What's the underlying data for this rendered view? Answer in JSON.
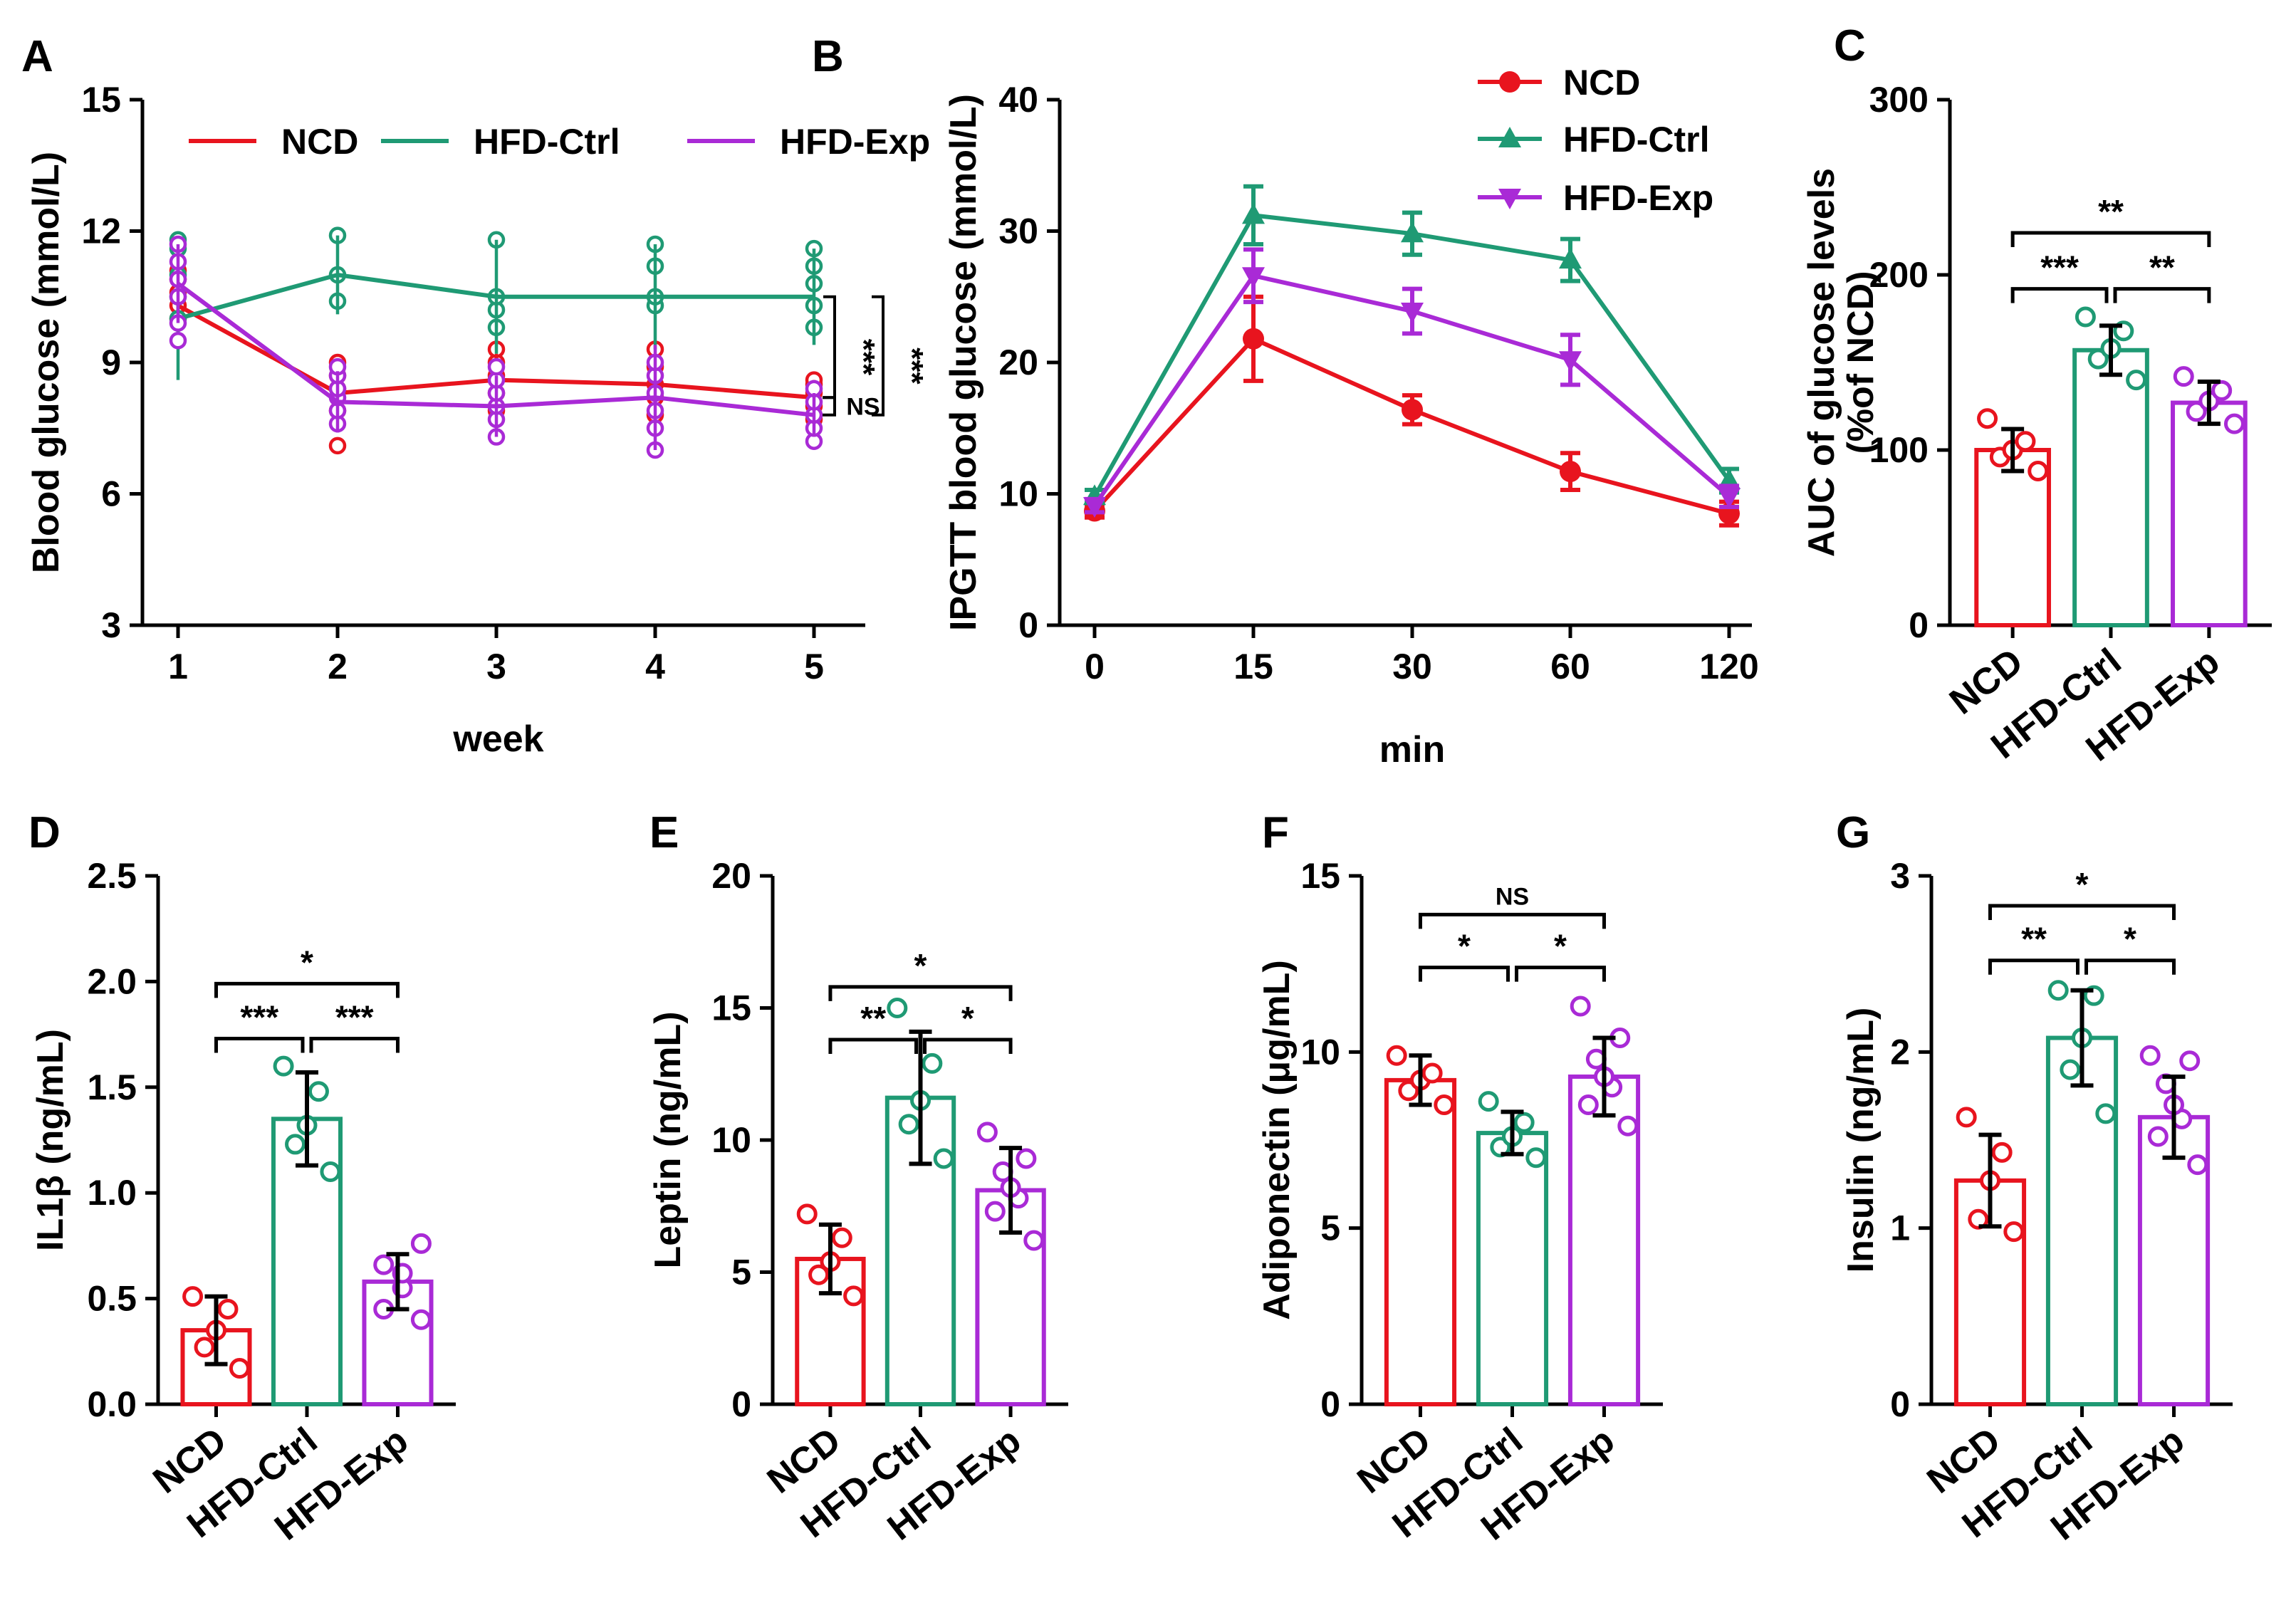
{
  "colors": {
    "NCD": "#e8141e",
    "HFD-Ctrl": "#1f9a74",
    "HFD-Exp": "#a92ad6",
    "axis": "#000000"
  },
  "chart_data": [
    {
      "id": "A",
      "panel_label": "A",
      "type": "line",
      "title": "",
      "xlabel": "week",
      "ylabel": "Blood glucose (mmol/L)",
      "x": [
        1,
        2,
        3,
        4,
        5
      ],
      "xtick_labels": [
        "1",
        "2",
        "3",
        "4",
        "5"
      ],
      "ylim": [
        3,
        15
      ],
      "yticks": [
        3,
        6,
        9,
        12,
        15
      ],
      "ytick_labels": [
        "3",
        "6",
        "9",
        "12",
        "15"
      ],
      "legend": {
        "placement": "top",
        "entries": [
          "NCD",
          "HFD-Ctrl",
          "HFD-Exp"
        ]
      },
      "series": [
        {
          "name": "NCD",
          "values": [
            10.3,
            8.3,
            8.6,
            8.5,
            8.2
          ],
          "err": [
            0.6,
            0.7,
            0.6,
            0.6,
            0.4
          ],
          "points": [
            [
              10.0,
              10.3,
              10.6,
              10.9,
              11.1
            ],
            [
              7.1,
              7.9,
              8.4,
              8.7,
              9.0
            ],
            [
              7.9,
              8.3,
              8.7,
              9.0,
              9.3
            ],
            [
              7.8,
              8.2,
              8.5,
              8.9,
              9.3
            ],
            [
              7.7,
              8.0,
              8.3,
              8.5,
              8.6
            ]
          ]
        },
        {
          "name": "HFD-Ctrl",
          "values": [
            10.0,
            11.0,
            10.5,
            10.5,
            10.5
          ],
          "err": [
            1.4,
            0.9,
            1.3,
            1.2,
            1.1
          ],
          "points": [
            [
              10.0,
              10.5,
              11.0,
              11.6,
              11.8
            ],
            [
              10.4,
              11.0,
              11.9
            ],
            [
              9.8,
              10.2,
              10.5,
              11.8
            ],
            [
              10.3,
              10.5,
              11.2,
              11.7
            ],
            [
              9.8,
              10.3,
              10.8,
              11.2,
              11.6
            ]
          ]
        },
        {
          "name": "HFD-Exp",
          "values": [
            10.8,
            8.1,
            8.0,
            8.2,
            7.8
          ],
          "err": [
            0.9,
            0.7,
            0.7,
            1.2,
            0.5
          ],
          "points": [
            [
              9.5,
              9.9,
              10.5,
              10.9,
              11.3,
              11.7
            ],
            [
              7.6,
              7.9,
              8.2,
              8.4,
              8.7,
              8.9
            ],
            [
              7.3,
              7.7,
              8.0,
              8.3,
              8.6,
              8.9
            ],
            [
              7.0,
              7.5,
              7.9,
              8.3,
              8.7,
              9.0
            ],
            [
              7.2,
              7.5,
              7.8,
              8.1,
              8.4
            ]
          ]
        }
      ],
      "brackets": [
        {
          "label": "***",
          "from": 10.5,
          "to": 8.2
        },
        {
          "label": "NS",
          "from": 8.2,
          "to": 7.8
        },
        {
          "label": "***",
          "from": 10.5,
          "to": 7.8
        }
      ]
    },
    {
      "id": "B",
      "panel_label": "B",
      "type": "line",
      "title": "",
      "xlabel": "min",
      "ylabel": "IPGTT blood glucose (mmol/L)",
      "x": [
        0,
        15,
        30,
        60,
        120
      ],
      "xtick_labels": [
        "0",
        "15",
        "30",
        "60",
        "120"
      ],
      "ylim": [
        0,
        40
      ],
      "yticks": [
        0,
        10,
        20,
        30,
        40
      ],
      "ytick_labels": [
        "0",
        "10",
        "20",
        "30",
        "40"
      ],
      "legend": {
        "placement": "top-right",
        "entries": [
          "NCD",
          "HFD-Ctrl",
          "HFD-Exp"
        ]
      },
      "series": [
        {
          "name": "NCD",
          "marker": "circle",
          "values": [
            8.7,
            21.8,
            16.4,
            11.7,
            8.5
          ],
          "err": [
            0.5,
            3.2,
            1.1,
            1.4,
            0.9
          ]
        },
        {
          "name": "HFD-Ctrl",
          "marker": "triangle-up",
          "values": [
            9.8,
            31.2,
            29.8,
            27.8,
            11.0
          ],
          "err": [
            0.5,
            2.2,
            1.6,
            1.6,
            0.9
          ]
        },
        {
          "name": "HFD-Exp",
          "marker": "triangle-down",
          "values": [
            9.1,
            26.6,
            23.9,
            20.2,
            9.8
          ],
          "err": [
            0.5,
            2.0,
            1.7,
            1.9,
            0.8
          ]
        }
      ]
    },
    {
      "id": "C",
      "panel_label": "C",
      "type": "bar",
      "title": "",
      "xlabel": "",
      "ylabel": "AUC of glucose levels\n(%of NCD)",
      "categories": [
        "NCD",
        "HFD-Ctrl",
        "HFD-Exp"
      ],
      "ylim": [
        0,
        300
      ],
      "yticks": [
        0,
        100,
        200,
        300
      ],
      "ytick_labels": [
        "0",
        "100",
        "200",
        "300"
      ],
      "values": [
        100,
        157,
        127
      ],
      "err": [
        12,
        14,
        12
      ],
      "points": [
        [
          88,
          96,
          100,
          105,
          118
        ],
        [
          140,
          152,
          158,
          168,
          176
        ],
        [
          115,
          122,
          128,
          134,
          142
        ]
      ],
      "brackets": [
        {
          "label": "***",
          "left": 0,
          "right": 1,
          "y": 192
        },
        {
          "label": "**",
          "left": 1,
          "right": 2,
          "y": 192
        },
        {
          "label": "**",
          "left": 0,
          "right": 2,
          "y": 224
        }
      ]
    },
    {
      "id": "D",
      "panel_label": "D",
      "type": "bar",
      "title": "",
      "xlabel": "",
      "ylabel": "IL1β (ng/mL)",
      "categories": [
        "NCD",
        "HFD-Ctrl",
        "HFD-Exp"
      ],
      "ylim": [
        0,
        2.5
      ],
      "yticks": [
        0,
        0.5,
        1.0,
        1.5,
        2.0,
        2.5
      ],
      "ytick_labels": [
        "0.0",
        "0.5",
        "1.0",
        "1.5",
        "2.0",
        "2.5"
      ],
      "values": [
        0.35,
        1.35,
        0.58
      ],
      "err": [
        0.16,
        0.22,
        0.13
      ],
      "points": [
        [
          0.17,
          0.27,
          0.35,
          0.45,
          0.51
        ],
        [
          1.1,
          1.23,
          1.32,
          1.48,
          1.6
        ],
        [
          0.4,
          0.45,
          0.55,
          0.62,
          0.66,
          0.76
        ]
      ],
      "brackets": [
        {
          "label": "***",
          "left": 0,
          "right": 1,
          "y": 1.73
        },
        {
          "label": "***",
          "left": 1,
          "right": 2,
          "y": 1.73
        },
        {
          "label": "*",
          "left": 0,
          "right": 2,
          "y": 1.99
        }
      ]
    },
    {
      "id": "E",
      "panel_label": "E",
      "type": "bar",
      "title": "",
      "xlabel": "",
      "ylabel": "Leptin (ng/mL)",
      "categories": [
        "NCD",
        "HFD-Ctrl",
        "HFD-Exp"
      ],
      "ylim": [
        0,
        20
      ],
      "yticks": [
        0,
        5,
        10,
        15,
        20
      ],
      "ytick_labels": [
        "0",
        "5",
        "10",
        "15",
        "20"
      ],
      "values": [
        5.5,
        11.6,
        8.1
      ],
      "err": [
        1.3,
        2.5,
        1.6
      ],
      "points": [
        [
          4.1,
          4.9,
          5.4,
          6.3,
          7.2
        ],
        [
          9.3,
          10.6,
          11.5,
          12.9,
          15.0
        ],
        [
          6.2,
          7.3,
          7.8,
          8.2,
          8.8,
          9.3,
          10.3
        ]
      ],
      "brackets": [
        {
          "label": "**",
          "left": 0,
          "right": 1,
          "y": 13.8
        },
        {
          "label": "*",
          "left": 1,
          "right": 2,
          "y": 13.8
        },
        {
          "label": "*",
          "left": 0,
          "right": 2,
          "y": 15.8
        }
      ]
    },
    {
      "id": "F",
      "panel_label": "F",
      "type": "bar",
      "title": "",
      "xlabel": "",
      "ylabel": "Adiponectin (μg/mL)",
      "categories": [
        "NCD",
        "HFD-Ctrl",
        "HFD-Exp"
      ],
      "ylim": [
        0,
        15
      ],
      "yticks": [
        0,
        5,
        10,
        15
      ],
      "ytick_labels": [
        "0",
        "5",
        "10",
        "15"
      ],
      "values": [
        9.2,
        7.7,
        9.3
      ],
      "err": [
        0.7,
        0.6,
        1.1
      ],
      "points": [
        [
          8.5,
          8.9,
          9.2,
          9.4,
          9.9
        ],
        [
          7.0,
          7.3,
          7.6,
          8.0,
          8.6
        ],
        [
          7.9,
          8.5,
          9.0,
          9.3,
          9.8,
          10.4,
          11.3
        ]
      ],
      "brackets": [
        {
          "label": "*",
          "left": 0,
          "right": 1,
          "y": 12.4
        },
        {
          "label": "*",
          "left": 1,
          "right": 2,
          "y": 12.4
        },
        {
          "label": "NS",
          "left": 0,
          "right": 2,
          "y": 13.9
        }
      ]
    },
    {
      "id": "G",
      "panel_label": "G",
      "type": "bar",
      "title": "",
      "xlabel": "",
      "ylabel": "Insulin (ng/mL)",
      "categories": [
        "NCD",
        "HFD-Ctrl",
        "HFD-Exp"
      ],
      "ylim": [
        0,
        3
      ],
      "yticks": [
        0,
        1,
        2,
        3
      ],
      "ytick_labels": [
        "0",
        "1",
        "2",
        "3"
      ],
      "values": [
        1.27,
        2.08,
        1.63
      ],
      "err": [
        0.26,
        0.27,
        0.23
      ],
      "points": [
        [
          0.98,
          1.05,
          1.27,
          1.43,
          1.63
        ],
        [
          1.65,
          1.9,
          2.08,
          2.32,
          2.35
        ],
        [
          1.36,
          1.52,
          1.62,
          1.7,
          1.82,
          1.95,
          1.98
        ]
      ],
      "brackets": [
        {
          "label": "**",
          "left": 0,
          "right": 1,
          "y": 2.52
        },
        {
          "label": "*",
          "left": 1,
          "right": 2,
          "y": 2.52
        },
        {
          "label": "*",
          "left": 0,
          "right": 2,
          "y": 2.83
        }
      ]
    }
  ]
}
